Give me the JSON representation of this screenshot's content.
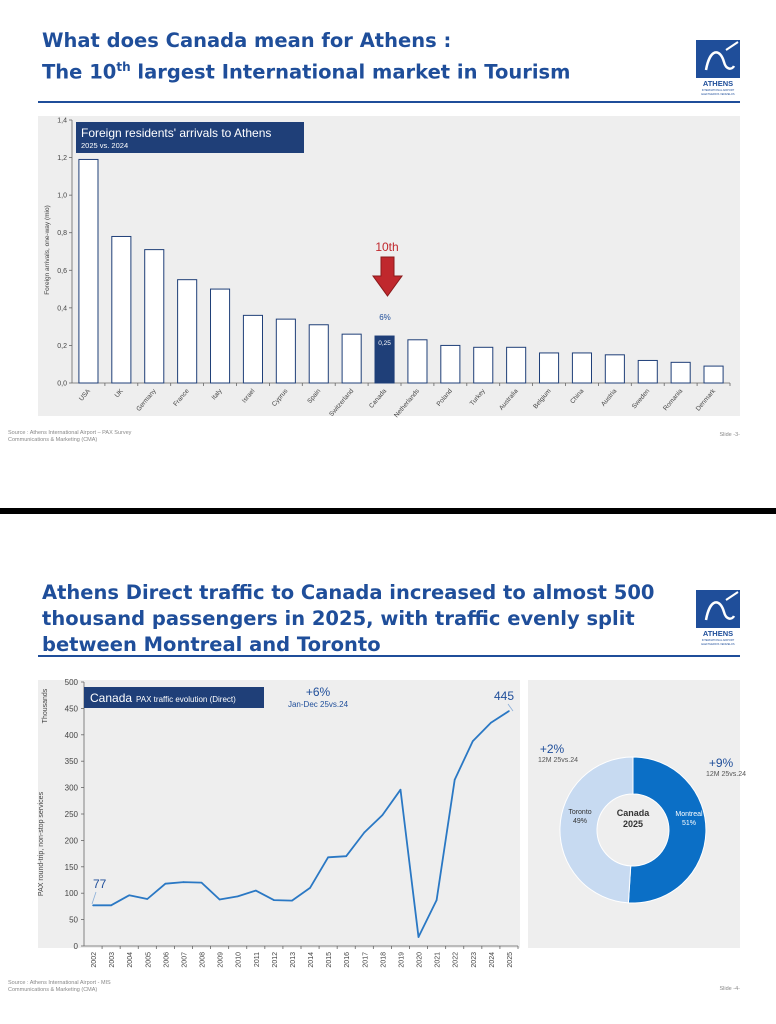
{
  "slide1": {
    "title_line1": "What does Canada mean for Athens :",
    "title_line2_a": "The 10",
    "title_line2_sup": "th",
    "title_line2_b": " largest International market in Tourism",
    "source_line1": "Source : Athens International Airport – PAX Survey",
    "source_line2": "Communications & Marketing (CMA)",
    "slide_number": "Slide -3-",
    "highlight_color": "#1f3f78"
  },
  "slide2": {
    "title_line1": "Athens Direct traffic to Canada increased to almost 500",
    "title_line2": "thousand passengers in 2025, with traffic evenly split",
    "title_line3": "between Montreal and Toronto",
    "source_line1": "Source : Athens International Airport - MIS",
    "source_line2": "Communications & Marketing (CMA)",
    "slide_number": "Slide -4-"
  },
  "logo": {
    "name": "ATHENS",
    "subtitle": "INTERNATIONAL AIRPORT",
    "tagline": "ELEFTHERIOS VENIZELOS"
  },
  "chart_data": [
    {
      "type": "bar",
      "title": "Foreign residents' arrivals to Athens",
      "subtitle": "2025 vs. 2024",
      "ylabel": "Foreign arrivals, one-way (mio)",
      "ylim": [
        0,
        1.4
      ],
      "yticks": [
        "0,0",
        "0,2",
        "0,4",
        "0,6",
        "0,8",
        "1,0",
        "1,2",
        "1,4"
      ],
      "categories": [
        "USA",
        "UK",
        "Germany",
        "France",
        "Italy",
        "Israel",
        "Cyprus",
        "Spain",
        "Switzerland",
        "Canada",
        "Netherlands",
        "Poland",
        "Turkey",
        "Australia",
        "Belgium",
        "China",
        "Austria",
        "Sweden",
        "Romania",
        "Denmark"
      ],
      "values": [
        1.19,
        0.78,
        0.71,
        0.55,
        0.5,
        0.36,
        0.34,
        0.31,
        0.26,
        0.25,
        0.23,
        0.2,
        0.19,
        0.19,
        0.16,
        0.16,
        0.15,
        0.12,
        0.11,
        0.09
      ],
      "highlight_index": 9,
      "highlight_value_label": "0,25",
      "annotation_rank": "10th",
      "annotation_growth": "6%"
    },
    {
      "type": "line",
      "title": "Canada",
      "subtitle": "PAX traffic evolution (Direct)",
      "units": "Thousands",
      "ylabel": "PAX round-trip, non-stop services",
      "ylim": [
        0,
        500
      ],
      "yticks": [
        0,
        50,
        100,
        150,
        200,
        250,
        300,
        350,
        400,
        450,
        500
      ],
      "x": [
        "2002",
        "2003",
        "2004",
        "2005",
        "2006",
        "2007",
        "2008",
        "2009",
        "2010",
        "2011",
        "2012",
        "2013",
        "2014",
        "2015",
        "2016",
        "2017",
        "2018",
        "2019",
        "2020",
        "2021",
        "2022",
        "2023",
        "2024",
        "2025"
      ],
      "values": [
        77,
        77,
        96,
        89,
        118,
        121,
        120,
        88,
        94,
        105,
        87,
        86,
        110,
        168,
        170,
        215,
        248,
        296,
        17,
        87,
        315,
        388,
        423,
        445
      ],
      "growth_label": "+6%",
      "growth_period": "Jan-Dec 25vs.24",
      "start_label": "77",
      "end_label": "445",
      "color": "#2a78c4"
    },
    {
      "type": "pie",
      "center_title": "Canada",
      "center_year": "2025",
      "slices": [
        {
          "name": "Montreal",
          "pct_label": "51%",
          "value": 51,
          "color": "#0b6fc6"
        },
        {
          "name": "Toronto",
          "pct_label": "49%",
          "value": 49,
          "color": "#c7daf1"
        }
      ],
      "toronto_growth": "+2%",
      "toronto_period": "12M 25vs.24",
      "montreal_growth": "+9%",
      "montreal_period": "12M 25vs.24"
    }
  ]
}
